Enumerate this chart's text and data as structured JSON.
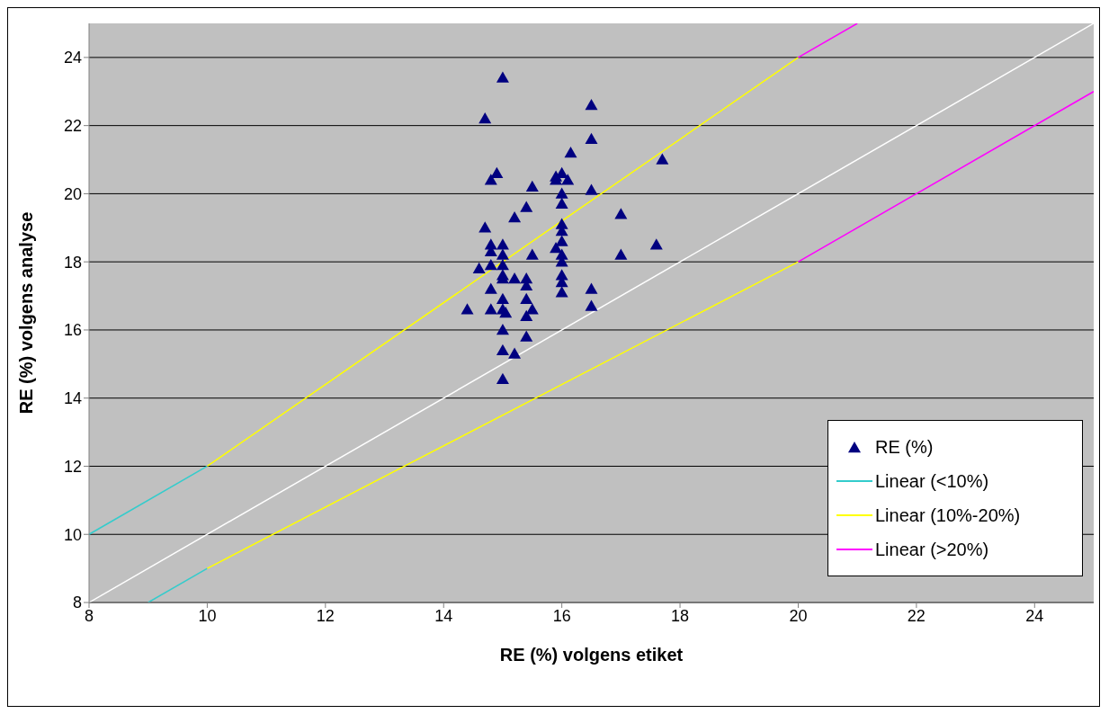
{
  "chart_data": {
    "type": "scatter",
    "xlabel": "RE (%) volgens etiket",
    "ylabel": "RE (%) volgens analyse",
    "xlim": [
      8,
      25
    ],
    "ylim": [
      8,
      25
    ],
    "xticks": [
      8,
      10,
      12,
      14,
      16,
      18,
      20,
      22,
      24
    ],
    "yticks": [
      8,
      10,
      12,
      14,
      16,
      18,
      20,
      22,
      24
    ],
    "grid": "y",
    "legend": "bottom right",
    "series": [
      {
        "name": "RE (%)",
        "marker": "triangle",
        "color": "#000080",
        "x": [
          15.0,
          14.7,
          16.5,
          16.15,
          16.5,
          17.7,
          14.9,
          14.8,
          15.9,
          16.0,
          15.9,
          16.1,
          15.5,
          16.5,
          16.0,
          16.0,
          15.4,
          15.2,
          17.0,
          14.7,
          16.0,
          16.0,
          14.8,
          15.0,
          17.6,
          15.9,
          16.0,
          14.8,
          15.0,
          15.5,
          17.0,
          16.0,
          16.0,
          14.6,
          14.8,
          15.0,
          15.0,
          16.0,
          15.0,
          15.2,
          15.4,
          15.4,
          16.0,
          14.8,
          16.5,
          16.0,
          15.0,
          15.4,
          15.0,
          14.4,
          14.8,
          15.05,
          15.5,
          15.4,
          16.5,
          15.0,
          15.4,
          15.0,
          15.2,
          15.0
        ],
        "values": [
          23.4,
          22.2,
          22.6,
          21.2,
          21.6,
          21.0,
          20.6,
          20.4,
          20.4,
          20.6,
          20.5,
          20.4,
          20.2,
          20.1,
          20.0,
          19.7,
          19.6,
          19.3,
          19.4,
          19.0,
          19.1,
          18.9,
          18.5,
          18.5,
          18.5,
          18.4,
          18.6,
          18.3,
          18.2,
          18.2,
          18.2,
          18.2,
          18.0,
          17.8,
          17.9,
          17.9,
          17.6,
          17.6,
          17.5,
          17.5,
          17.5,
          17.3,
          17.4,
          17.2,
          17.2,
          17.1,
          16.9,
          16.9,
          16.6,
          16.6,
          16.6,
          16.5,
          16.6,
          16.4,
          16.7,
          16.0,
          15.8,
          15.4,
          15.3,
          14.55
        ]
      },
      {
        "name": "Linear (<10%)",
        "type": "line",
        "color": "#33cccc",
        "x": [
          8,
          10
        ],
        "values": [
          10,
          12
        ]
      },
      {
        "type": "line",
        "color": "#33cccc",
        "x": [
          9,
          10
        ],
        "values": [
          8,
          9
        ]
      },
      {
        "name": "Linear (10%-20%)",
        "type": "line",
        "color": "#ffff00",
        "x": [
          10,
          20
        ],
        "values": [
          12,
          24
        ]
      },
      {
        "type": "line",
        "color": "#ffff00",
        "x": [
          10,
          20
        ],
        "values": [
          9,
          18
        ]
      },
      {
        "name": "Linear (>20%)",
        "type": "line",
        "color": "#ff00ff",
        "x": [
          20,
          21
        ],
        "values": [
          24,
          25
        ]
      },
      {
        "type": "line",
        "color": "#ff00ff",
        "x": [
          20,
          25
        ],
        "values": [
          18,
          23
        ]
      },
      {
        "type": "line",
        "color": "#ffffff",
        "x": [
          8,
          25
        ],
        "values": [
          8,
          25
        ]
      }
    ]
  }
}
